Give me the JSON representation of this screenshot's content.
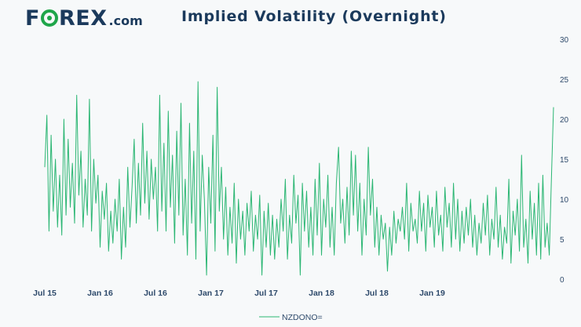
{
  "colors": {
    "logo": "#1b3a5c",
    "accent": "#1fa64a",
    "title": "#1b3a5c",
    "axis_text": "#2e4a6b",
    "line": "#2bb673"
  },
  "brand": {
    "logo_f": "F",
    "logo_rex": "REX",
    "logo_dot": ".com"
  },
  "chart_data": {
    "type": "line",
    "title": "Implied Volatility (Overnight)",
    "xlabel": "",
    "ylabel": "",
    "ylim": [
      0,
      30
    ],
    "y_ticks": [
      0,
      5,
      10,
      15,
      20,
      25,
      30
    ],
    "y_axis_side": "right",
    "x_tick_labels": [
      "Jul 15",
      "Jan 16",
      "Jul 16",
      "Jan 17",
      "Jul 17",
      "Jan 18",
      "Jul 18",
      "Jan 19"
    ],
    "x_tick_index": [
      0,
      26,
      52,
      78,
      104,
      130,
      156,
      182
    ],
    "legend": {
      "position": "bottom-center",
      "entries": [
        "NZDONO="
      ]
    },
    "series": [
      {
        "name": "NZDONO=",
        "values": [
          14.0,
          20.5,
          6.0,
          18.0,
          8.5,
          15.0,
          6.5,
          13.0,
          5.5,
          20.0,
          8.0,
          17.5,
          9.0,
          14.5,
          7.0,
          23.0,
          10.5,
          16.0,
          6.5,
          12.5,
          8.0,
          22.5,
          6.0,
          15.0,
          9.5,
          13.0,
          4.0,
          11.0,
          7.5,
          12.0,
          3.5,
          8.5,
          4.5,
          10.0,
          6.0,
          12.5,
          2.5,
          9.0,
          4.0,
          14.0,
          6.5,
          11.5,
          17.5,
          7.0,
          14.5,
          8.0,
          19.5,
          9.5,
          16.0,
          7.5,
          15.0,
          10.0,
          14.0,
          6.0,
          23.0,
          8.5,
          17.0,
          6.0,
          21.0,
          9.0,
          15.5,
          4.5,
          18.5,
          8.0,
          22.0,
          5.5,
          12.5,
          3.0,
          19.5,
          7.0,
          16.0,
          2.5,
          24.7,
          6.0,
          15.5,
          10.0,
          0.5,
          14.0,
          7.0,
          18.0,
          3.5,
          24.0,
          8.5,
          14.0,
          5.0,
          11.5,
          3.0,
          9.0,
          4.5,
          12.0,
          2.0,
          10.0,
          5.0,
          8.5,
          3.0,
          9.5,
          6.0,
          11.0,
          3.5,
          8.0,
          5.0,
          10.5,
          0.5,
          8.5,
          4.0,
          9.5,
          3.0,
          8.0,
          2.5,
          7.5,
          4.0,
          10.0,
          6.0,
          12.5,
          2.5,
          8.0,
          4.5,
          13.0,
          7.0,
          10.5,
          0.5,
          12.0,
          6.0,
          11.0,
          4.0,
          9.0,
          3.0,
          12.5,
          5.5,
          14.5,
          3.0,
          10.0,
          6.5,
          13.0,
          4.0,
          9.0,
          3.0,
          12.0,
          16.5,
          7.0,
          10.0,
          4.5,
          11.5,
          5.5,
          16.0,
          8.0,
          15.5,
          6.0,
          12.0,
          3.0,
          10.0,
          5.5,
          16.5,
          8.0,
          12.5,
          4.0,
          9.0,
          3.0,
          8.0,
          5.0,
          7.0,
          1.0,
          6.5,
          3.0,
          8.5,
          4.5,
          7.5,
          6.0,
          9.0,
          5.0,
          12.0,
          3.5,
          9.5,
          6.0,
          7.5,
          4.5,
          11.0,
          6.0,
          9.5,
          3.5,
          10.5,
          6.5,
          9.0,
          4.0,
          11.0,
          5.5,
          8.0,
          3.5,
          11.5,
          6.5,
          9.5,
          4.0,
          12.0,
          5.0,
          10.0,
          3.5,
          8.5,
          4.5,
          9.0,
          5.5,
          10.0,
          4.0,
          8.0,
          3.0,
          7.0,
          4.5,
          9.5,
          5.5,
          10.5,
          3.0,
          7.5,
          5.0,
          11.5,
          4.0,
          8.0,
          2.5,
          6.5,
          4.5,
          12.5,
          2.0,
          8.5,
          5.5,
          10.0,
          3.5,
          15.5,
          4.0,
          7.5,
          2.0,
          11.0,
          5.0,
          9.5,
          3.0,
          12.0,
          2.5,
          13.0,
          4.0,
          7.0,
          3.0,
          12.5,
          21.5
        ]
      }
    ]
  }
}
